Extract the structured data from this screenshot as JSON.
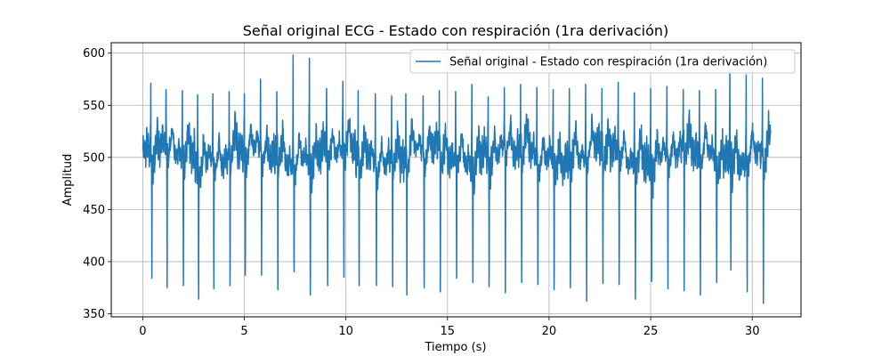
{
  "chart_data": {
    "type": "line",
    "title": "Señal original ECG - Estado con respiración (1ra derivación)",
    "xlabel": "Tiempo (s)",
    "ylabel": "Amplitud",
    "xlim": [
      -1.55,
      32.4
    ],
    "ylim": [
      347,
      610
    ],
    "xticks": [
      0,
      5,
      10,
      15,
      20,
      25,
      30
    ],
    "xtick_labels": [
      "0",
      "5",
      "10",
      "15",
      "20",
      "25",
      "30"
    ],
    "yticks": [
      350,
      400,
      450,
      500,
      550,
      600
    ],
    "ytick_labels": [
      "350",
      "400",
      "450",
      "500",
      "550",
      "600"
    ],
    "grid": true,
    "legend_position": "top-right",
    "line_color": "#1f77b4",
    "series": [
      {
        "name": "Señal original - Estado con respiración (1ra derivación)",
        "x_start": 0,
        "x_end": 30.9,
        "baseline": 500,
        "beats": [
          {
            "t": 0.45,
            "r": 571,
            "s": 384
          },
          {
            "t": 1.2,
            "r": 565,
            "s": 375
          },
          {
            "t": 2.0,
            "r": 564,
            "s": 377
          },
          {
            "t": 2.75,
            "r": 560,
            "s": 364
          },
          {
            "t": 3.5,
            "r": 561,
            "s": 374
          },
          {
            "t": 4.3,
            "r": 563,
            "s": 377
          },
          {
            "t": 5.05,
            "r": 561,
            "s": 387
          },
          {
            "t": 5.85,
            "r": 575,
            "s": 387
          },
          {
            "t": 6.65,
            "r": 563,
            "s": 373
          },
          {
            "t": 7.45,
            "r": 598,
            "s": 390
          },
          {
            "t": 8.25,
            "r": 595,
            "s": 368
          },
          {
            "t": 9.1,
            "r": 566,
            "s": 377
          },
          {
            "t": 9.9,
            "r": 573,
            "s": 385
          },
          {
            "t": 10.65,
            "r": 564,
            "s": 377
          },
          {
            "t": 11.5,
            "r": 561,
            "s": 377
          },
          {
            "t": 12.3,
            "r": 559,
            "s": 376
          },
          {
            "t": 13.0,
            "r": 561,
            "s": 368
          },
          {
            "t": 13.85,
            "r": 559,
            "s": 375
          },
          {
            "t": 14.65,
            "r": 564,
            "s": 371
          },
          {
            "t": 15.45,
            "r": 563,
            "s": 384
          },
          {
            "t": 16.25,
            "r": 570,
            "s": 380
          },
          {
            "t": 17.05,
            "r": 558,
            "s": 376
          },
          {
            "t": 17.85,
            "r": 567,
            "s": 370
          },
          {
            "t": 18.65,
            "r": 570,
            "s": 380
          },
          {
            "t": 19.45,
            "r": 567,
            "s": 378
          },
          {
            "t": 20.25,
            "r": 565,
            "s": 373
          },
          {
            "t": 21.05,
            "r": 566,
            "s": 375
          },
          {
            "t": 21.85,
            "r": 570,
            "s": 362
          },
          {
            "t": 22.65,
            "r": 566,
            "s": 379
          },
          {
            "t": 23.45,
            "r": 572,
            "s": 378
          },
          {
            "t": 24.25,
            "r": 562,
            "s": 364
          },
          {
            "t": 25.05,
            "r": 566,
            "s": 381
          },
          {
            "t": 25.85,
            "r": 568,
            "s": 374
          },
          {
            "t": 26.65,
            "r": 565,
            "s": 372
          },
          {
            "t": 27.45,
            "r": 564,
            "s": 368
          },
          {
            "t": 28.25,
            "r": 565,
            "s": 380
          },
          {
            "t": 28.95,
            "r": 583,
            "s": 392
          },
          {
            "t": 29.75,
            "r": 579,
            "s": 371
          },
          {
            "t": 30.55,
            "r": 576,
            "s": 360
          }
        ]
      }
    ]
  }
}
